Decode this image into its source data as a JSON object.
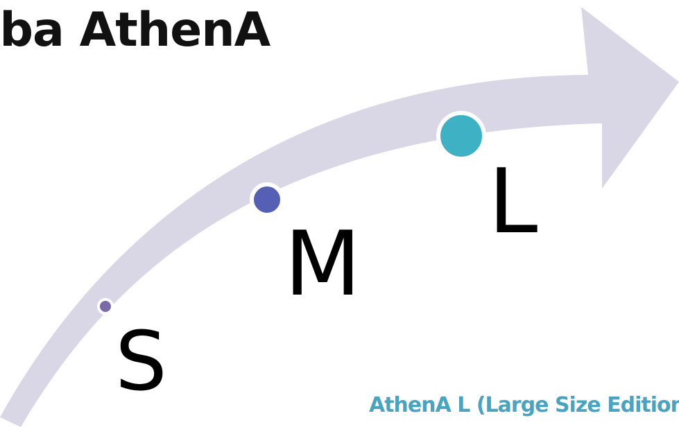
{
  "title": "Řba AthenA",
  "stages": [
    {
      "label": "S",
      "color": "#7a6aa8"
    },
    {
      "label": "M",
      "color": "#5560b4"
    },
    {
      "label": "L",
      "color": "#3fb1c4"
    }
  ],
  "caption": "AthenA L (Large Size Edition",
  "colors": {
    "arrow": "#d9d7e6",
    "dot_ring": "#ffffff",
    "caption": "#4aa3bf"
  }
}
